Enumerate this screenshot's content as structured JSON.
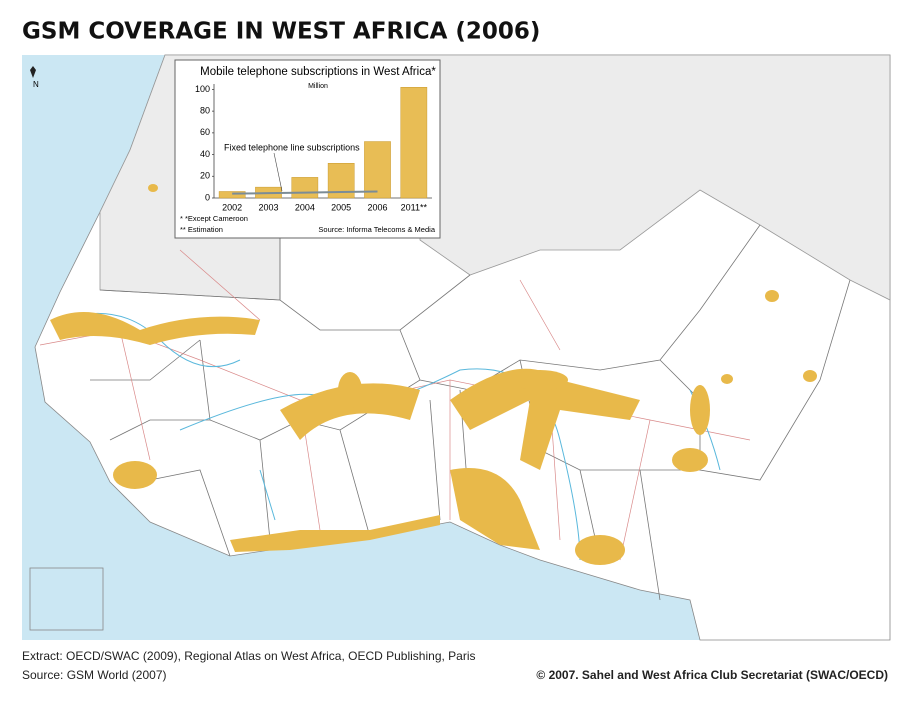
{
  "header": {
    "title": "GSM COVERAGE IN WEST AFRICA (2006)"
  },
  "map": {
    "north_label": "N"
  },
  "chart_data": {
    "type": "bar",
    "title": "Mobile telephone subscriptions in West Africa*",
    "y_unit": "Million",
    "categories": [
      "2002",
      "2003",
      "2004",
      "2005",
      "2006",
      "2011**"
    ],
    "values": [
      6,
      10,
      19,
      32,
      52,
      102
    ],
    "color": "#e8bd55",
    "ylim": [
      0,
      105
    ],
    "yticks": [
      0,
      20,
      40,
      60,
      80,
      100
    ],
    "fixed_line": {
      "label": "Fixed telephone line subscriptions",
      "values": [
        4,
        4.5,
        5,
        5.5,
        6,
        null
      ],
      "color": "#7b8c96"
    },
    "notes": [
      "* *Except Cameroon",
      "** Estimation"
    ],
    "source": "Source: Informa Telecoms & Media"
  },
  "footer": {
    "extract": "Extract: OECD/SWAC (2009), Regional Atlas on West Africa, OECD Publishing, Paris",
    "source": "Source: GSM World (2007)",
    "copyright": "© 2007. Sahel and West Africa Club Secretariat (SWAC/OECD)"
  }
}
